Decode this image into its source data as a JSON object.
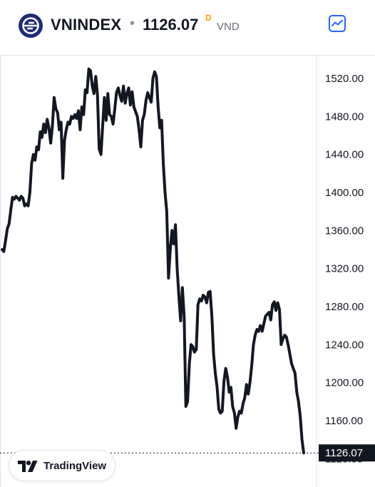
{
  "header": {
    "symbol": "VNINDEX",
    "separator": "•",
    "price": "1126.07",
    "delay_badge": "D",
    "currency": "VND",
    "chart_button_icon": "chart-line-icon",
    "logo_icon": "vnindex-logo-icon"
  },
  "colors": {
    "line": "#131722",
    "accent": "#2962ff",
    "logo": "#1f2a78",
    "delay": "#f7a600",
    "last_label_bg": "#131722"
  },
  "branding": {
    "label": "TradingView",
    "icon": "tradingview-logo-icon"
  },
  "chart_data": {
    "type": "line",
    "title": "",
    "xlabel": "",
    "ylabel": "",
    "ylim": [
      1105,
      1550
    ],
    "y_ticks": [
      "1520.00",
      "1480.00",
      "1440.00",
      "1400.00",
      "1360.00",
      "1320.00",
      "1280.00",
      "1240.00",
      "1200.00",
      "1160.00"
    ],
    "y_tick_values": [
      1520,
      1480,
      1440,
      1400,
      1360,
      1320,
      1280,
      1240,
      1200,
      1160
    ],
    "hidden_tick": "1120.00",
    "hidden_tick_value": 1120,
    "last_value": 1126.07,
    "last_label": "1126.07",
    "grid": false,
    "axis_position": "right",
    "series": [
      {
        "values": [
          1340,
          1338,
          1350,
          1362,
          1367,
          1382,
          1395,
          1393,
          1396,
          1394,
          1392,
          1396,
          1394,
          1386,
          1388,
          1386,
          1400,
          1430,
          1440,
          1434,
          1448,
          1445,
          1464,
          1458,
          1472,
          1463,
          1477,
          1468,
          1452,
          1470,
          1500,
          1488,
          1484,
          1466,
          1474,
          1415,
          1455,
          1466,
          1474,
          1472,
          1480,
          1478,
          1482,
          1478,
          1486,
          1466,
          1490,
          1482,
          1508,
          1505,
          1530,
          1528,
          1512,
          1504,
          1522,
          1503,
          1446,
          1440,
          1470,
          1500,
          1476,
          1504,
          1482,
          1480,
          1472,
          1488,
          1505,
          1510,
          1502,
          1496,
          1512,
          1494,
          1504,
          1510,
          1492,
          1506,
          1490,
          1485,
          1480,
          1466,
          1448,
          1476,
          1482,
          1497,
          1505,
          1500,
          1495,
          1520,
          1527,
          1522,
          1490,
          1468,
          1476,
          1430,
          1400,
          1380,
          1310,
          1340,
          1360,
          1346,
          1366,
          1320,
          1290,
          1265,
          1300,
          1270,
          1175,
          1180,
          1220,
          1240,
          1238,
          1232,
          1235,
          1282,
          1288,
          1286,
          1292,
          1290,
          1284,
          1295,
          1296,
          1270,
          1230,
          1210,
          1196,
          1172,
          1168,
          1170,
          1202,
          1215,
          1206,
          1190,
          1195,
          1175,
          1168,
          1152,
          1164,
          1170,
          1168,
          1178,
          1184,
          1198,
          1188,
          1200,
          1218,
          1240,
          1250,
          1256,
          1254,
          1260,
          1254,
          1262,
          1270,
          1272,
          1274,
          1266,
          1282,
          1285,
          1276,
          1284,
          1277,
          1240,
          1246,
          1250,
          1248,
          1240,
          1230,
          1220,
          1215,
          1210,
          1190,
          1180,
          1165,
          1140,
          1126.07
        ]
      }
    ]
  }
}
